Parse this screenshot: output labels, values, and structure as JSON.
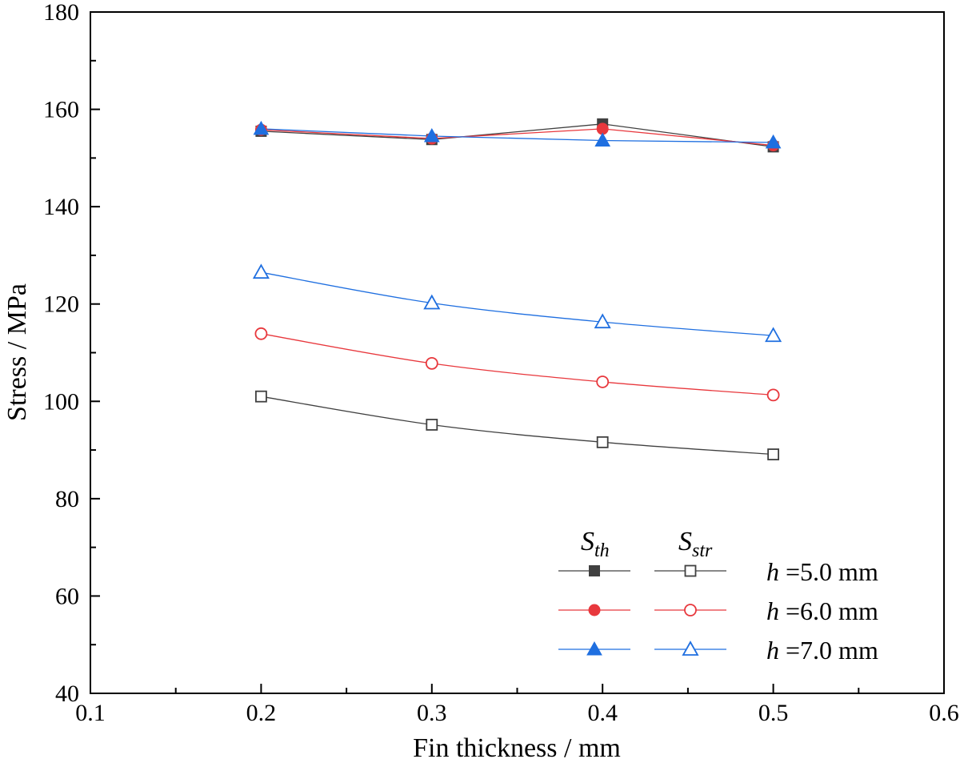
{
  "chart_data": {
    "type": "line",
    "xlabel": "Fin thickness / mm",
    "ylabel": "Stress / MPa",
    "xlim": [
      0.1,
      0.6
    ],
    "ylim": [
      40,
      180
    ],
    "x_ticks": [
      "0.1",
      "0.2",
      "0.3",
      "0.4",
      "0.5",
      "0.6"
    ],
    "y_ticks": [
      "40",
      "60",
      "80",
      "100",
      "120",
      "140",
      "160",
      "180"
    ],
    "x_tick_values": [
      0.1,
      0.2,
      0.3,
      0.4,
      0.5,
      0.6
    ],
    "y_tick_values": [
      40,
      60,
      80,
      100,
      120,
      140,
      160,
      180
    ],
    "grid": false,
    "legend_position": "bottom-right",
    "legend": {
      "col1_main": "S",
      "col1_sub": "th",
      "col2_main": "S",
      "col2_sub": "str",
      "rows": [
        {
          "h": "h",
          "label": " =5.0 mm"
        },
        {
          "h": "h",
          "label": " =6.0 mm"
        },
        {
          "h": "h",
          "label": " =7.0 mm"
        }
      ]
    },
    "x": [
      0.2,
      0.3,
      0.4,
      0.5
    ],
    "series": [
      {
        "group": "S_th",
        "h": "5.0 mm",
        "marker": "square",
        "filled": true,
        "color": "#404040",
        "values": [
          155.5,
          153.8,
          157.0,
          152.3
        ]
      },
      {
        "group": "S_th",
        "h": "6.0 mm",
        "marker": "circle",
        "filled": true,
        "color": "#e8383d",
        "values": [
          155.8,
          154.0,
          156.0,
          152.6
        ]
      },
      {
        "group": "S_th",
        "h": "7.0 mm",
        "marker": "triangle",
        "filled": true,
        "color": "#1f6fe0",
        "values": [
          156.0,
          154.5,
          153.6,
          153.2
        ]
      },
      {
        "group": "S_str",
        "h": "5.0 mm",
        "marker": "square",
        "filled": false,
        "color": "#404040",
        "values": [
          101.0,
          95.2,
          91.6,
          89.1
        ]
      },
      {
        "group": "S_str",
        "h": "6.0 mm",
        "marker": "circle",
        "filled": false,
        "color": "#e8383d",
        "values": [
          113.9,
          107.8,
          104.0,
          101.3
        ]
      },
      {
        "group": "S_str",
        "h": "7.0 mm",
        "marker": "triangle",
        "filled": false,
        "color": "#1f6fe0",
        "values": [
          126.5,
          120.2,
          116.3,
          113.5
        ]
      }
    ]
  }
}
